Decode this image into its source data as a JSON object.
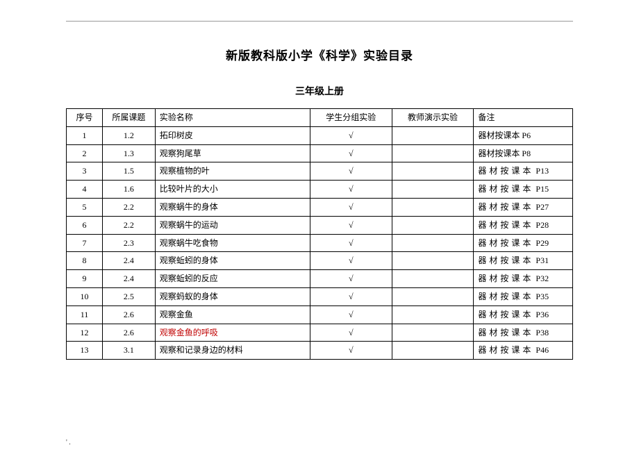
{
  "title": "新版教科版小学《科学》实验目录",
  "subtitle": "三年级上册",
  "columns": {
    "seq": "序号",
    "topic": "所属课题",
    "name": "实验名称",
    "student": "学生分组实验",
    "teacher": "教师演示实验",
    "note": "备注"
  },
  "check": "√",
  "note_prefix_spaced": "器材按课本",
  "note_prefix_compact": "器材按课本 ",
  "rows": [
    {
      "seq": "1",
      "topic": "1.2",
      "name": "拓印树皮",
      "student": true,
      "teacher": false,
      "note_style": "compact",
      "page": "P6"
    },
    {
      "seq": "2",
      "topic": "1.3",
      "name": "观察狗尾草",
      "student": true,
      "teacher": false,
      "note_style": "compact",
      "page": "P8"
    },
    {
      "seq": "3",
      "topic": "1.5",
      "name": "观察植物的叶",
      "student": true,
      "teacher": false,
      "note_style": "spaced",
      "page": "P13"
    },
    {
      "seq": "4",
      "topic": "1.6",
      "name": "比较叶片的大小",
      "student": true,
      "teacher": false,
      "note_style": "spaced",
      "page": "P15"
    },
    {
      "seq": "5",
      "topic": "2.2",
      "name": "观察蜗牛的身体",
      "student": true,
      "teacher": false,
      "note_style": "spaced",
      "page": "P27"
    },
    {
      "seq": "6",
      "topic": "2.2",
      "name": "观察蜗牛的运动",
      "student": true,
      "teacher": false,
      "note_style": "spaced",
      "page": "P28"
    },
    {
      "seq": "7",
      "topic": "2.3",
      "name": "观察蜗牛吃食物",
      "student": true,
      "teacher": false,
      "note_style": "spaced",
      "page": "P29"
    },
    {
      "seq": "8",
      "topic": "2.4",
      "name": "观察蚯蚓的身体",
      "student": true,
      "teacher": false,
      "note_style": "spaced",
      "page": "P31"
    },
    {
      "seq": "9",
      "topic": "2.4",
      "name": "观察蚯蚓的反应",
      "student": true,
      "teacher": false,
      "note_style": "spaced",
      "page": "P32"
    },
    {
      "seq": "10",
      "topic": "2.5",
      "name": "观察蚂蚁的身体",
      "student": true,
      "teacher": false,
      "note_style": "spaced",
      "page": "P35"
    },
    {
      "seq": "11",
      "topic": "2.6",
      "name": "观察金鱼",
      "student": true,
      "teacher": false,
      "note_style": "spaced",
      "page": "P36"
    },
    {
      "seq": "12",
      "topic": "2.6",
      "name": "观察金鱼的呼吸",
      "student": true,
      "teacher": false,
      "note_style": "spaced",
      "page": "P38",
      "red": true
    },
    {
      "seq": "13",
      "topic": "3.1",
      "name": "观察和记录身边的材料",
      "student": true,
      "teacher": false,
      "note_style": "spaced",
      "page": "P46"
    }
  ],
  "bottom_mark": "' .",
  "colors": {
    "text": "#000000",
    "red": "#c00000",
    "border": "#000000",
    "rule": "#999999",
    "background": "#ffffff"
  }
}
